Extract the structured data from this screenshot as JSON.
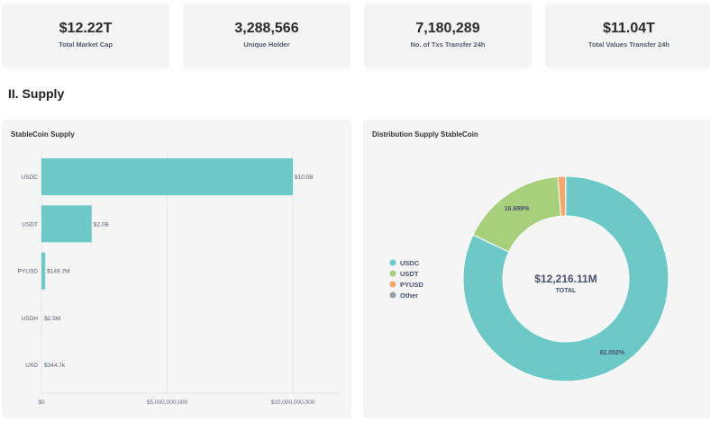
{
  "stats": [
    {
      "value": "$12.22T",
      "label": "Total Market Cap"
    },
    {
      "value": "3,288,566",
      "label": "Unique Holder"
    },
    {
      "value": "7,180,289",
      "label": "No. of Txs Transfer 24h"
    },
    {
      "value": "$11.04T",
      "label": "Total Values Transfer 24h"
    }
  ],
  "section_title": "II. Supply",
  "chart_data": [
    {
      "type": "bar",
      "orientation": "horizontal",
      "title": "StableCoin Supply",
      "categories": [
        "USDC",
        "USDT",
        "PYUSD",
        "USDH",
        "UXD"
      ],
      "values": [
        10000000000,
        2000000000,
        149700000,
        2500000,
        344700
      ],
      "data_labels": [
        "$10.0B",
        "$2.0B",
        "$149.7M",
        "$2.5M",
        "$344.7k"
      ],
      "xticks": [
        "$0",
        "$5,000,000,000",
        "$10,000,000,000"
      ],
      "xlim": [
        0,
        11800000000
      ],
      "grid": true,
      "color": "#6cc9c8"
    },
    {
      "type": "pie",
      "donut": true,
      "title": "Distribution Supply StableCoin",
      "categories": [
        "USDC",
        "USDT",
        "PYUSD",
        "Other"
      ],
      "values": [
        82.052,
        16.699,
        1.225,
        0.024
      ],
      "data_labels": [
        "82.052%",
        "16.699%",
        "",
        ""
      ],
      "colors": [
        "#6cc9c8",
        "#a8d07c",
        "#f4a76a",
        "#9a9db0"
      ],
      "center_value": "$12,216.11M",
      "center_label": "TOTAL",
      "legend": "left"
    }
  ]
}
